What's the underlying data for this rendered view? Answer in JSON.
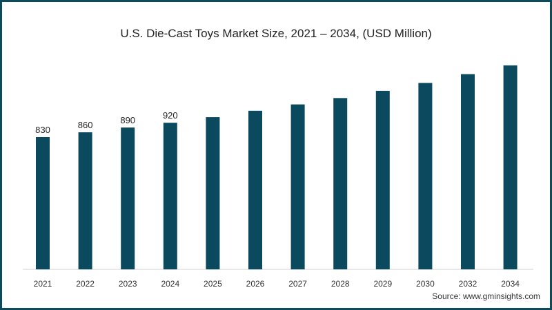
{
  "chart_data": {
    "type": "bar",
    "title": "U.S. Die-Cast Toys Market Size, 2021 – 2034, (USD Million)",
    "xlabel": "",
    "ylabel": "",
    "categories": [
      "2021",
      "2022",
      "2023",
      "2024",
      "2025",
      "2026",
      "2027",
      "2028",
      "2029",
      "2030",
      "2032",
      "2034"
    ],
    "values": [
      830,
      860,
      890,
      920,
      955,
      995,
      1035,
      1075,
      1120,
      1170,
      1225,
      1280
    ],
    "data_labels": [
      "830",
      "860",
      "890",
      "920",
      "",
      "",
      "",
      "",
      "",
      "",
      "",
      ""
    ],
    "ylim": [
      0,
      1300
    ],
    "grid": false,
    "bar_color": "#0b4a5e",
    "source": "Source: www.gminsights.com"
  }
}
